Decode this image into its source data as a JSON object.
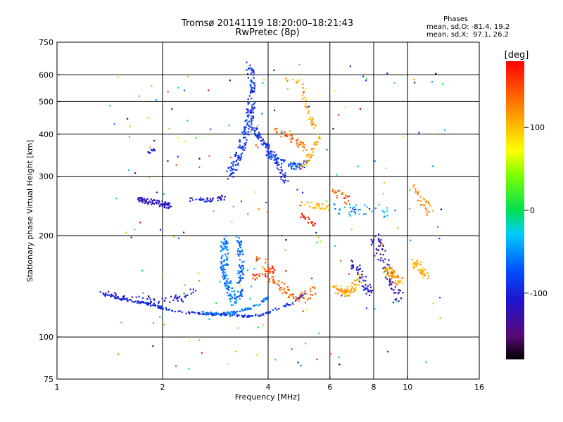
{
  "chart_data": {
    "type": "scatter",
    "title": "Tromsø 20141119 18:20:00–18:21:43",
    "subtitle": "RwPretec (8p)",
    "xlabel": "Frequency [MHz]",
    "ylabel": "Stationary phase Virtual Height [km]",
    "x_scale": "log",
    "y_scale": "log",
    "xlim": [
      1,
      16
    ],
    "ylim": [
      75,
      750
    ],
    "x_ticks": [
      1,
      2,
      4,
      6,
      8,
      10,
      16
    ],
    "y_ticks": [
      75,
      100,
      200,
      300,
      400,
      500,
      600,
      750
    ],
    "x_gridlines": [
      2,
      4,
      6,
      8,
      10
    ],
    "y_gridlines": [
      100,
      200,
      300,
      400,
      500,
      600
    ],
    "grid": true,
    "annotation": {
      "title": "Phases",
      "line1": "mean, sd,O: -81.4, 19.2",
      "line2": "mean, sd,X:  97.1, 26.2"
    },
    "colorbar": {
      "label": "[deg]",
      "ticks": [
        100,
        0,
        -100
      ],
      "range": [
        -180,
        180
      ],
      "colormap": "rainbow"
    },
    "traces": [
      {
        "segments": [
          [
            [
              1.35,
              135
            ],
            [
              1.5,
              130
            ],
            [
              1.7,
              127
            ],
            [
              1.9,
              124
            ],
            [
              2.1,
              120
            ],
            [
              2.4,
              118
            ],
            [
              2.8,
              117
            ],
            [
              3.2,
              116
            ],
            [
              3.6,
              115
            ],
            [
              4.0,
              118
            ],
            [
              4.4,
              123
            ],
            [
              4.8,
              128
            ],
            [
              5.1,
              135
            ]
          ]
        ],
        "value": -95,
        "n": 200,
        "spread": 0.015
      },
      {
        "segments": [
          [
            [
              2.6,
              118
            ],
            [
              2.9,
              117
            ],
            [
              3.2,
              118
            ],
            [
              3.5,
              121
            ],
            [
              3.8,
              126
            ],
            [
              4.0,
              132
            ]
          ]
        ],
        "value": -60,
        "n": 80,
        "spread": 0.02
      },
      {
        "segments": [
          [
            [
              3.0,
              200
            ],
            [
              3.0,
              160
            ],
            [
              3.1,
              140
            ],
            [
              3.2,
              125
            ]
          ]
        ],
        "value": -55,
        "n": 140,
        "spread": 0.05
      },
      {
        "segments": [
          [
            [
              3.3,
              200
            ],
            [
              3.35,
              160
            ],
            [
              3.3,
              130
            ]
          ]
        ],
        "value": -65,
        "n": 80,
        "spread": 0.04
      },
      {
        "segments": [
          [
            [
              1.35,
              135
            ],
            [
              1.6,
              130
            ],
            [
              1.9,
              128
            ],
            [
              2.2,
              130
            ],
            [
              2.5,
              138
            ]
          ]
        ],
        "value": -110,
        "n": 70,
        "spread": 0.04
      },
      {
        "segments": [
          [
            [
              1.7,
              255
            ],
            [
              1.9,
              250
            ],
            [
              2.1,
              245
            ]
          ]
        ],
        "value": -115,
        "n": 90,
        "spread": 0.04
      },
      {
        "segments": [
          [
            [
              2.4,
              255
            ],
            [
              2.8,
              255
            ],
            [
              3.0,
              260
            ]
          ]
        ],
        "value": -110,
        "n": 40,
        "spread": 0.03
      },
      {
        "segments": [
          [
            [
              3.1,
              300
            ],
            [
              3.3,
              350
            ],
            [
              3.45,
              400
            ],
            [
              3.55,
              450
            ],
            [
              3.6,
              550
            ],
            [
              3.55,
              640
            ]
          ]
        ],
        "value": -90,
        "n": 180,
        "spread": 0.05
      },
      {
        "segments": [
          [
            [
              3.6,
              420
            ],
            [
              3.9,
              380
            ],
            [
              4.3,
              320
            ],
            [
              4.5,
              290
            ]
          ]
        ],
        "value": -95,
        "n": 90,
        "spread": 0.04
      },
      {
        "segments": [
          [
            [
              4.0,
              350
            ],
            [
              4.4,
              330
            ],
            [
              4.8,
              320
            ],
            [
              5.2,
              330
            ]
          ]
        ],
        "value": -75,
        "n": 70,
        "spread": 0.04
      },
      {
        "segments": [
          [
            [
              4.5,
              580
            ],
            [
              5.0,
              570
            ],
            [
              5.2,
              470
            ],
            [
              5.4,
              420
            ]
          ]
        ],
        "value": 120,
        "n": 40,
        "spread": 0.03
      },
      {
        "segments": [
          [
            [
              5.0,
              320
            ],
            [
              5.3,
              350
            ],
            [
              5.6,
              400
            ]
          ]
        ],
        "value": 115,
        "n": 40,
        "spread": 0.03
      },
      {
        "segments": [
          [
            [
              4.2,
              410
            ],
            [
              4.8,
              380
            ],
            [
              5.2,
              360
            ]
          ]
        ],
        "value": 140,
        "n": 40,
        "spread": 0.05
      },
      {
        "segments": [
          [
            [
              3.8,
              170
            ],
            [
              4.1,
              150
            ],
            [
              4.5,
              135
            ],
            [
              5.0,
              130
            ],
            [
              5.4,
              140
            ]
          ]
        ],
        "value": 140,
        "n": 90,
        "spread": 0.06
      },
      {
        "segments": [
          [
            [
              3.6,
              150
            ],
            [
              3.9,
              155
            ],
            [
              4.2,
              160
            ]
          ]
        ],
        "value": 160,
        "n": 30,
        "spread": 0.04
      },
      {
        "segments": [
          [
            [
              5.0,
              230
            ],
            [
              5.3,
              220
            ],
            [
              5.5,
              215
            ]
          ]
        ],
        "value": 165,
        "n": 20,
        "spread": 0.03
      },
      {
        "segments": [
          [
            [
              5.0,
              250
            ],
            [
              5.5,
              245
            ],
            [
              6.0,
              240
            ]
          ]
        ],
        "value": 110,
        "n": 30,
        "spread": 0.04
      },
      {
        "segments": [
          [
            [
              6.2,
              140
            ],
            [
              6.6,
              135
            ],
            [
              7.0,
              140
            ],
            [
              7.4,
              150
            ]
          ]
        ],
        "value": 115,
        "n": 70,
        "spread": 0.05
      },
      {
        "segments": [
          [
            [
              7.0,
              165
            ],
            [
              7.4,
              150
            ],
            [
              7.8,
              135
            ]
          ]
        ],
        "value": -110,
        "n": 50,
        "spread": 0.05
      },
      {
        "segments": [
          [
            [
              8.0,
              200
            ],
            [
              8.5,
              170
            ],
            [
              9.0,
              150
            ],
            [
              9.4,
              130
            ]
          ]
        ],
        "value": -120,
        "n": 80,
        "spread": 0.07
      },
      {
        "segments": [
          [
            [
              8.6,
              160
            ],
            [
              9.2,
              150
            ],
            [
              9.6,
              145
            ]
          ]
        ],
        "value": 115,
        "n": 60,
        "spread": 0.06
      },
      {
        "segments": [
          [
            [
              10.3,
              170
            ],
            [
              10.8,
              160
            ],
            [
              11.3,
              150
            ]
          ]
        ],
        "value": 110,
        "n": 45,
        "spread": 0.05
      },
      {
        "segments": [
          [
            [
              6.3,
              240
            ],
            [
              6.8,
              240
            ],
            [
              8.0,
              240
            ],
            [
              9.0,
              230
            ]
          ]
        ],
        "value": -40,
        "n": 40,
        "spread": 0.08
      },
      {
        "segments": [
          [
            [
              6.1,
              270
            ],
            [
              6.6,
              260
            ],
            [
              7.0,
              250
            ]
          ]
        ],
        "value": 150,
        "n": 20,
        "spread": 0.05
      },
      {
        "segments": [
          [
            [
              10.5,
              280
            ],
            [
              11.2,
              250
            ],
            [
              11.8,
              230
            ]
          ]
        ],
        "value": 130,
        "n": 30,
        "spread": 0.05
      },
      {
        "segments": [
          [
            [
              1.8,
              350
            ],
            [
              1.9,
              360
            ]
          ]
        ],
        "value": -100,
        "n": 12,
        "spread": 0.02
      }
    ],
    "noise": {
      "n": 200,
      "xlim": [
        1.4,
        13
      ],
      "ylim": [
        80,
        650
      ]
    }
  }
}
